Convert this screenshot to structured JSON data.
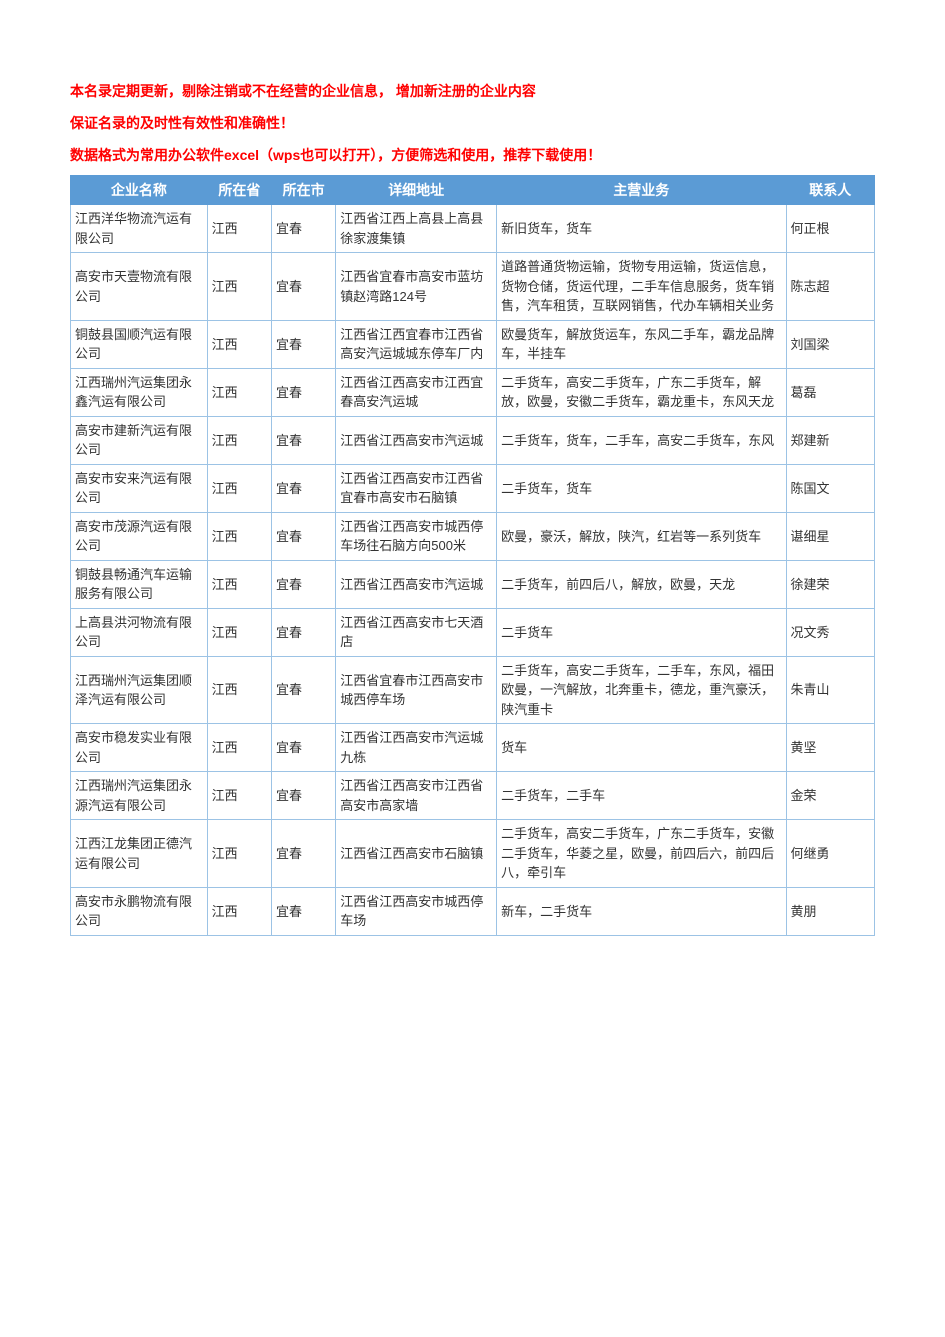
{
  "notice_lines": [
    "本名录定期更新，剔除注销或不在经营的企业信息， 增加新注册的企业内容",
    "保证名录的及时性有效性和准确性！",
    "数据格式为常用办公软件excel（wps也可以打开），方便筛选和使用，推荐下载使用！"
  ],
  "columns": [
    "企业名称",
    "所在省",
    "所在市",
    "详细地址",
    "主营业务",
    "联系人"
  ],
  "rows": [
    [
      "江西洋华物流汽运有限公司",
      "江西",
      "宜春",
      "江西省江西上高县上高县徐家渡集镇",
      "新旧货车，货车",
      "何正根"
    ],
    [
      "高安市天壹物流有限公司",
      "江西",
      "宜春",
      "江西省宜春市高安市蓝坊镇赵湾路124号",
      "道路普通货物运输，货物专用运输，货运信息，货物仓储，货运代理，二手车信息服务，货车销售，汽车租赁，互联网销售，代办车辆相关业务",
      "陈志超"
    ],
    [
      "铜鼓县国顺汽运有限公司",
      "江西",
      "宜春",
      "江西省江西宜春市江西省高安汽运城城东停车厂内",
      "欧曼货车，解放货运车，东风二手车，霸龙品牌车，半挂车",
      "刘国梁"
    ],
    [
      "江西瑞州汽运集团永鑫汽运有限公司",
      "江西",
      "宜春",
      "江西省江西高安市江西宜春高安汽运城",
      "二手货车，高安二手货车，广东二手货车，解放，欧曼，安徽二手货车，霸龙重卡，东风天龙",
      "葛磊"
    ],
    [
      "高安市建新汽运有限公司",
      "江西",
      "宜春",
      "江西省江西高安市汽运城",
      "二手货车，货车，二手车，高安二手货车，东风",
      "郑建新"
    ],
    [
      "高安市安来汽运有限公司",
      "江西",
      "宜春",
      "江西省江西高安市江西省宜春市高安市石脑镇",
      "二手货车，货车",
      "陈国文"
    ],
    [
      "高安市茂源汽运有限公司",
      "江西",
      "宜春",
      "江西省江西高安市城西停车场往石脑方向500米",
      "欧曼，豪沃，解放，陕汽，红岩等一系列货车",
      "谌细星"
    ],
    [
      "铜鼓县畅通汽车运输服务有限公司",
      "江西",
      "宜春",
      "江西省江西高安市汽运城",
      "二手货车，前四后八，解放，欧曼，天龙",
      "徐建荣"
    ],
    [
      "上高县洪河物流有限公司",
      "江西",
      "宜春",
      "江西省江西高安市七天酒店",
      "二手货车",
      "况文秀"
    ],
    [
      "江西瑞州汽运集团顺泽汽运有限公司",
      "江西",
      "宜春",
      "江西省宜春市江西高安市城西停车场",
      "二手货车，高安二手货车，二手车，东风，福田欧曼，一汽解放，北奔重卡，德龙，重汽豪沃，陕汽重卡",
      "朱青山"
    ],
    [
      "高安市稳发实业有限公司",
      "江西",
      "宜春",
      "江西省江西高安市汽运城九栋",
      "货车",
      "黄坚"
    ],
    [
      "江西瑞州汽运集团永源汽运有限公司",
      "江西",
      "宜春",
      "江西省江西高安市江西省高安市高家墙",
      "二手货车，二手车",
      "金荣"
    ],
    [
      "江西江龙集团正德汽运有限公司",
      "江西",
      "宜春",
      "江西省江西高安市石脑镇",
      "二手货车，高安二手货车，广东二手货车，安徽二手货车，华菱之星，欧曼，前四后六，前四后八，牵引车",
      "何继勇"
    ],
    [
      "高安市永鹏物流有限公司",
      "江西",
      "宜春",
      "江西省江西高安市城西停车场",
      "新车，二手货车",
      "黄朋"
    ]
  ],
  "style": {
    "header_bg": "#5b9bd5",
    "header_color": "#ffffff",
    "border_color": "#9cc3e5",
    "notice_color": "#ff0000",
    "body_font_size": 13,
    "header_font_size": 14,
    "notice_font_size": 14
  }
}
